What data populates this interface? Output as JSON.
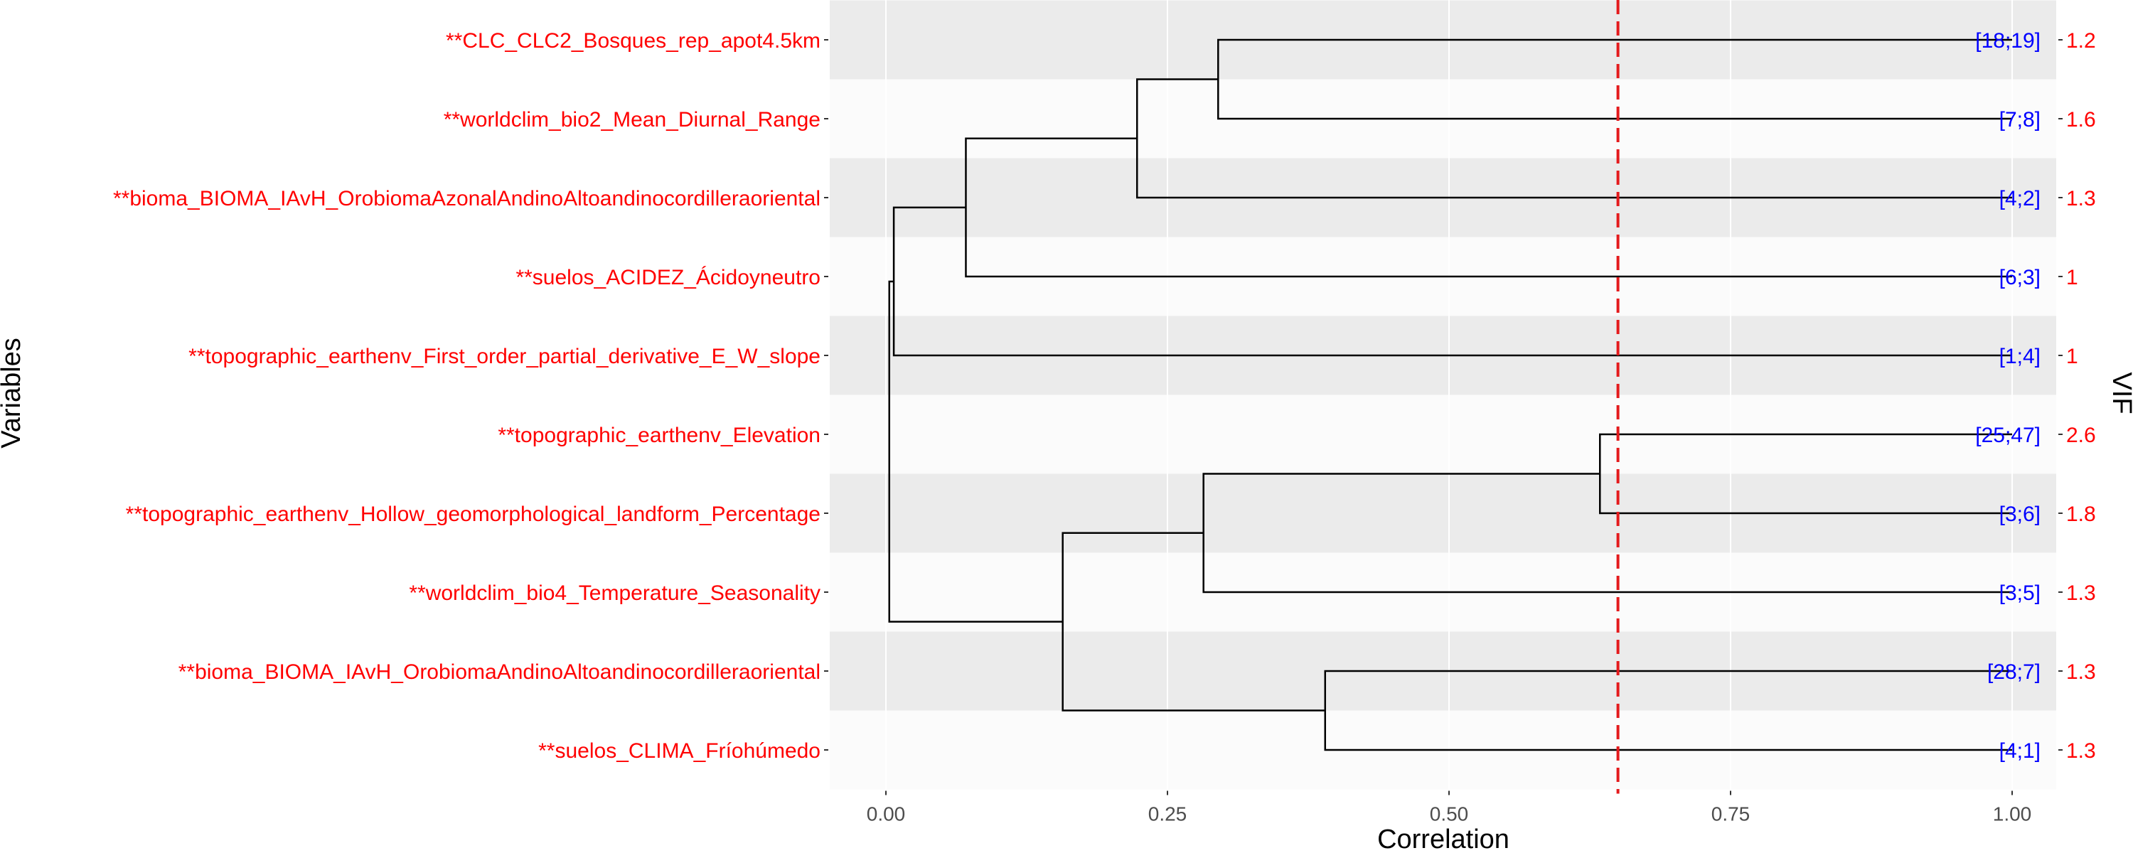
{
  "chart_data": {
    "type": "dendrogram",
    "xlabel": "Correlation",
    "ylabel": "Variables",
    "right_axis_label": "VIF",
    "xlim": [
      -0.02,
      1.04
    ],
    "x_ticks": [
      0.0,
      0.25,
      0.5,
      0.75,
      1.0
    ],
    "x_tick_labels": [
      "0.00",
      "0.25",
      "0.50",
      "0.75",
      "1.00"
    ],
    "threshold": 0.65,
    "threshold_color": "#e41a1c",
    "variable_label_color": "#ff0000",
    "interval_label_color": "#0000ff",
    "vif_label_color": "#ff0000",
    "band_colors": [
      "#ebebeb",
      "#fbfbfb"
    ],
    "leaves": [
      {
        "label": "**CLC_CLC2_Bosques_rep_apot4.5km",
        "interval": "[18;19]",
        "vif": "1.2"
      },
      {
        "label": "**worldclim_bio2_Mean_Diurnal_Range",
        "interval": "[7;8]",
        "vif": "1.6"
      },
      {
        "label": "**bioma_BIOMA_IAvH_OrobiomaAzonalAndinoAltoandinocordilleraoriental",
        "interval": "[4;2]",
        "vif": "1.3"
      },
      {
        "label": "**suelos_ACIDEZ_Ácidoyneutro",
        "interval": "[6;3]",
        "vif": "1"
      },
      {
        "label": "**topographic_earthenv_First_order_partial_derivative_E_W_slope",
        "interval": "[1;4]",
        "vif": "1"
      },
      {
        "label": "**topographic_earthenv_Elevation",
        "interval": "[25;47]",
        "vif": "2.6"
      },
      {
        "label": "**topographic_earthenv_Hollow_geomorphological_landform_Percentage",
        "interval": "[3;6]",
        "vif": "1.8"
      },
      {
        "label": "**worldclim_bio4_Temperature_Seasonality",
        "interval": "[3;5]",
        "vif": "1.3"
      },
      {
        "label": "**bioma_BIOMA_IAvH_OrobiomaAndinoAltoandinocordilleraoriental",
        "interval": "[28;7]",
        "vif": "1.3"
      },
      {
        "label": "**suelos_CLIMA_Fríohúmedo",
        "interval": "[4;1]",
        "vif": "1.3"
      }
    ],
    "leaf_x": 1.0,
    "merges": [
      {
        "id": "m1",
        "left": 0,
        "right": 1,
        "height": 0.295
      },
      {
        "id": "m2",
        "left": "m1",
        "right": 2,
        "height": 0.223
      },
      {
        "id": "m3",
        "left": "m2",
        "right": 3,
        "height": 0.071
      },
      {
        "id": "m4",
        "left": "m3",
        "right": 4,
        "height": 0.007
      },
      {
        "id": "m5",
        "left": 5,
        "right": 6,
        "height": 0.634
      },
      {
        "id": "m6",
        "left": "m5",
        "right": 7,
        "height": 0.282
      },
      {
        "id": "m7",
        "left": 8,
        "right": 9,
        "height": 0.39
      },
      {
        "id": "m8",
        "left": "m6",
        "right": "m7",
        "height": 0.157
      },
      {
        "id": "m9",
        "left": "m4",
        "right": "m8",
        "height": 0.003
      }
    ]
  }
}
